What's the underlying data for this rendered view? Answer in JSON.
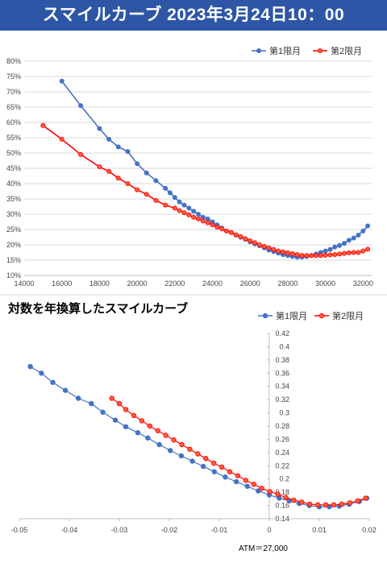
{
  "header": {
    "title": "スマイルカーブ 2023年3月24日10：00"
  },
  "section2": {
    "title": "対数を年換算したスマイルカーブ"
  },
  "footnote": {
    "atm": "ATM＝27,000"
  },
  "colors": {
    "banner": "#2e56a6",
    "series1": "#4472c4",
    "series2": "#ff0000",
    "series2_marker_fill": "#ff5a3c"
  },
  "chart_data": [
    {
      "type": "line",
      "title": "",
      "xlabel": "",
      "ylabel": "",
      "xlim": [
        14000,
        32500
      ],
      "ylim": [
        0.1,
        0.8
      ],
      "x_ticks": [
        14000,
        16000,
        18000,
        20000,
        22000,
        24000,
        26000,
        28000,
        30000,
        32000
      ],
      "y_ticks": [
        0.1,
        0.15,
        0.2,
        0.25,
        0.3,
        0.35,
        0.4,
        0.45,
        0.5,
        0.55,
        0.6,
        0.65,
        0.7,
        0.75,
        0.8
      ],
      "y_tick_labels": [
        "10%",
        "15%",
        "20%",
        "25%",
        "30%",
        "35%",
        "40%",
        "45%",
        "50%",
        "55%",
        "60%",
        "65%",
        "70%",
        "75%",
        "80%"
      ],
      "legend_position": "top-right",
      "grid": "horizontal",
      "series": [
        {
          "name": "第1限月",
          "x": [
            16000,
            17000,
            18000,
            18500,
            19000,
            19500,
            20000,
            20500,
            21000,
            21500,
            21750,
            22000,
            22250,
            22500,
            22750,
            23000,
            23250,
            23500,
            23750,
            24000,
            24250,
            24500,
            24750,
            25000,
            25250,
            25500,
            25750,
            26000,
            26250,
            26500,
            26750,
            27000,
            27250,
            27500,
            27750,
            28000,
            28250,
            28500,
            28750,
            29000,
            29250,
            29500,
            29750,
            30000,
            30250,
            30500,
            30750,
            31000,
            31250,
            31500,
            31750,
            32000,
            32250
          ],
          "y": [
            0.735,
            0.655,
            0.58,
            0.545,
            0.52,
            0.505,
            0.465,
            0.435,
            0.41,
            0.385,
            0.37,
            0.355,
            0.34,
            0.33,
            0.32,
            0.31,
            0.3,
            0.29,
            0.285,
            0.275,
            0.265,
            0.255,
            0.245,
            0.24,
            0.232,
            0.225,
            0.218,
            0.21,
            0.203,
            0.197,
            0.19,
            0.183,
            0.178,
            0.173,
            0.168,
            0.165,
            0.162,
            0.16,
            0.16,
            0.162,
            0.165,
            0.17,
            0.175,
            0.18,
            0.185,
            0.193,
            0.198,
            0.205,
            0.215,
            0.222,
            0.232,
            0.245,
            0.262
          ]
        },
        {
          "name": "第2限月",
          "x": [
            15000,
            16000,
            17000,
            18000,
            18500,
            19000,
            19500,
            20000,
            20500,
            21000,
            21500,
            22000,
            22250,
            22500,
            22750,
            23000,
            23250,
            23500,
            23750,
            24000,
            24250,
            24500,
            24750,
            25000,
            25250,
            25500,
            25750,
            26000,
            26250,
            26500,
            26750,
            27000,
            27250,
            27500,
            27750,
            28000,
            28250,
            28500,
            28750,
            29000,
            29250,
            29500,
            29750,
            30000,
            30250,
            30500,
            30750,
            31000,
            31250,
            31500,
            31750,
            32000,
            32250
          ],
          "y": [
            0.59,
            0.545,
            0.495,
            0.455,
            0.44,
            0.418,
            0.4,
            0.38,
            0.365,
            0.345,
            0.33,
            0.32,
            0.312,
            0.305,
            0.298,
            0.29,
            0.285,
            0.278,
            0.272,
            0.265,
            0.258,
            0.252,
            0.245,
            0.24,
            0.233,
            0.227,
            0.22,
            0.213,
            0.207,
            0.2,
            0.195,
            0.19,
            0.185,
            0.18,
            0.177,
            0.174,
            0.171,
            0.168,
            0.165,
            0.165,
            0.165,
            0.165,
            0.165,
            0.166,
            0.167,
            0.168,
            0.17,
            0.172,
            0.174,
            0.175,
            0.175,
            0.18,
            0.186
          ]
        }
      ]
    },
    {
      "type": "scatter",
      "title": "対数を年換算したスマイルカーブ",
      "xlabel": "",
      "ylabel": "",
      "xlim": [
        -0.05,
        0.02
      ],
      "ylim": [
        0.14,
        0.42
      ],
      "x_ticks": [
        -0.05,
        -0.04,
        -0.03,
        -0.02,
        -0.01,
        0,
        0.01,
        0.02
      ],
      "x_tick_labels": [
        "-0.05",
        "-0.04",
        "-0.03",
        "-0.02",
        "-0.01",
        "0",
        "0.01",
        "0.02"
      ],
      "y_ticks": [
        0.14,
        0.16,
        0.18,
        0.2,
        0.22,
        0.24,
        0.26,
        0.28,
        0.3,
        0.32,
        0.34,
        0.36,
        0.38,
        0.4,
        0.42
      ],
      "y_tick_labels": [
        "0.14",
        "0.16",
        "0.18",
        "0.2",
        "0.22",
        "0.24",
        "0.26",
        "0.28",
        "0.3",
        "0.32",
        "0.34",
        "0.36",
        "0.38",
        "0.4",
        "0.42"
      ],
      "legend_position": "top-right",
      "grid": "none",
      "annotation": "ATM＝27,000",
      "series": [
        {
          "name": "第1限月",
          "x": [
            -0.0478,
            -0.0456,
            -0.0433,
            -0.0408,
            -0.0382,
            -0.0356,
            -0.0333,
            -0.0308,
            -0.0287,
            -0.0263,
            -0.0243,
            -0.022,
            -0.0198,
            -0.0176,
            -0.0154,
            -0.0132,
            -0.011,
            -0.0088,
            -0.0066,
            -0.0044,
            -0.0022,
            0.0,
            0.002,
            0.004,
            0.006,
            0.008,
            0.01,
            0.012,
            0.014,
            0.016,
            0.018,
            0.0195
          ],
          "y": [
            0.37,
            0.36,
            0.346,
            0.334,
            0.322,
            0.314,
            0.301,
            0.289,
            0.279,
            0.27,
            0.262,
            0.252,
            0.243,
            0.235,
            0.227,
            0.219,
            0.211,
            0.203,
            0.196,
            0.189,
            0.182,
            0.176,
            0.171,
            0.167,
            0.163,
            0.16,
            0.158,
            0.158,
            0.159,
            0.162,
            0.166,
            0.171
          ]
        },
        {
          "name": "第2限月",
          "x": [
            -0.0315,
            -0.03,
            -0.0287,
            -0.0271,
            -0.0255,
            -0.0239,
            -0.0223,
            -0.0207,
            -0.0191,
            -0.0175,
            -0.0159,
            -0.0143,
            -0.0127,
            -0.0111,
            -0.0095,
            -0.0079,
            -0.0063,
            -0.0047,
            -0.0031,
            -0.0015,
            0.0001,
            0.0017,
            0.0033,
            0.0049,
            0.0065,
            0.0081,
            0.0097,
            0.0113,
            0.0129,
            0.0145,
            0.0161,
            0.0177,
            0.0193
          ],
          "y": [
            0.322,
            0.314,
            0.305,
            0.296,
            0.288,
            0.28,
            0.273,
            0.266,
            0.259,
            0.252,
            0.245,
            0.238,
            0.231,
            0.224,
            0.218,
            0.211,
            0.205,
            0.198,
            0.192,
            0.186,
            0.181,
            0.177,
            0.172,
            0.168,
            0.165,
            0.162,
            0.161,
            0.161,
            0.161,
            0.162,
            0.164,
            0.167,
            0.171
          ]
        }
      ]
    }
  ]
}
